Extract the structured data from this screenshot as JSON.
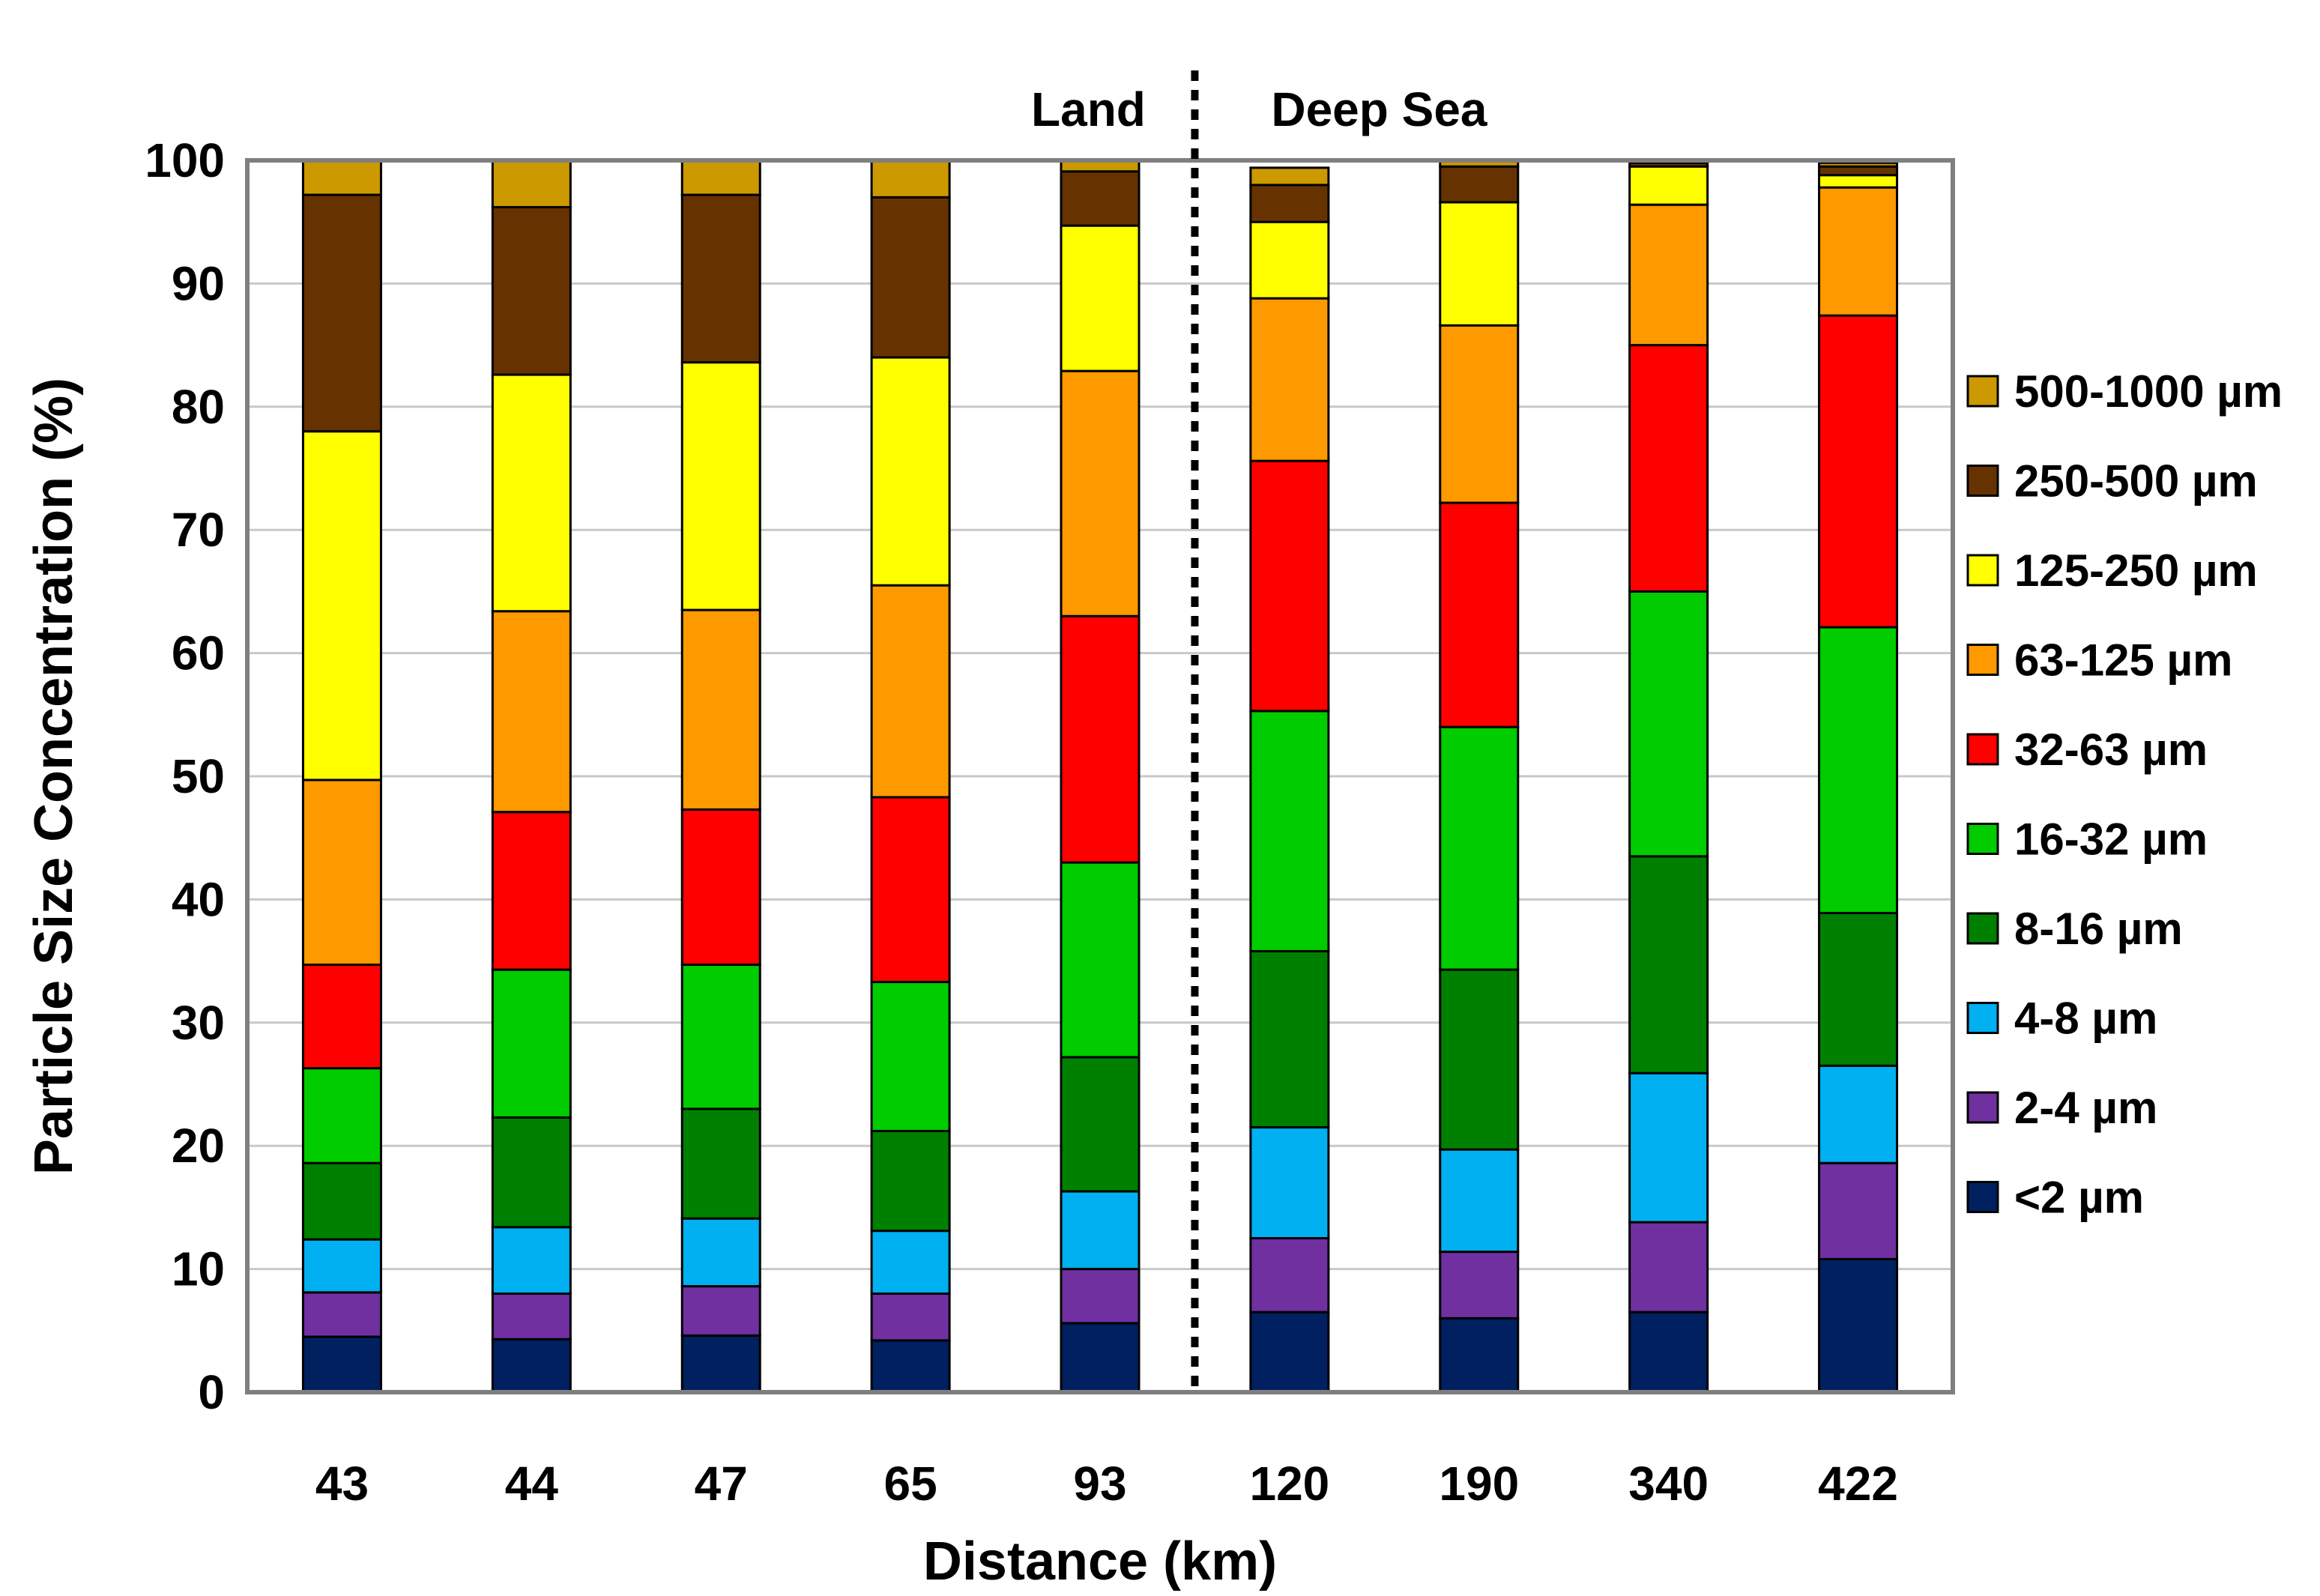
{
  "chart_data": {
    "type": "bar",
    "stacked": true,
    "title": "",
    "xlabel": "Distance (km)",
    "ylabel": "Particle Size Concentration (%)",
    "ylim": [
      0,
      100
    ],
    "yticks": [
      "0",
      "10",
      "20",
      "30",
      "40",
      "50",
      "60",
      "70",
      "80",
      "90",
      "100"
    ],
    "categories": [
      "43",
      "44",
      "47",
      "65",
      "93",
      "120",
      "190",
      "340",
      "422"
    ],
    "grid": true,
    "legend_position": "right",
    "annotations": {
      "divider_after_category": "93",
      "left_label": "Land",
      "right_label": "Deep Sea"
    },
    "series": [
      {
        "name": "<2 µm",
        "color": "#002060",
        "values": [
          4.5,
          4.3,
          4.6,
          4.2,
          5.6,
          6.5,
          6.0,
          6.5,
          10.8
        ]
      },
      {
        "name": "2-4 µm",
        "color": "#7030A0",
        "values": [
          3.6,
          3.7,
          4.0,
          3.8,
          4.4,
          6.0,
          5.4,
          7.3,
          7.8
        ]
      },
      {
        "name": "4-8 µm",
        "color": "#00B0F0",
        "values": [
          4.3,
          5.4,
          5.5,
          5.1,
          6.3,
          9.0,
          8.3,
          12.1,
          7.9
        ]
      },
      {
        "name": "8-16 µm",
        "color": "#008000",
        "values": [
          6.2,
          8.9,
          8.9,
          8.1,
          10.9,
          14.3,
          14.6,
          17.6,
          12.4
        ]
      },
      {
        "name": "16-32 µm",
        "color": "#00CC00",
        "values": [
          7.7,
          12.0,
          11.7,
          12.1,
          15.8,
          19.5,
          19.7,
          21.5,
          23.2
        ]
      },
      {
        "name": "32-63 µm",
        "color": "#FF0000",
        "values": [
          8.4,
          12.8,
          12.6,
          15.0,
          20.0,
          20.3,
          18.2,
          20.0,
          25.3
        ]
      },
      {
        "name": "63-125 µm",
        "color": "#FF9900",
        "values": [
          15.0,
          16.3,
          16.2,
          17.2,
          19.9,
          13.2,
          14.4,
          11.4,
          10.4
        ]
      },
      {
        "name": "125-250 µm",
        "color": "#FFFF00",
        "values": [
          28.3,
          19.2,
          20.1,
          18.5,
          11.8,
          6.2,
          10.0,
          3.1,
          1.0
        ]
      },
      {
        "name": "250-500 µm",
        "color": "#663300",
        "values": [
          19.2,
          13.6,
          13.6,
          13.0,
          4.4,
          3.0,
          2.9,
          0.3,
          0.7
        ]
      },
      {
        "name": "500-1000 µm",
        "color": "#CC9900",
        "values": [
          2.8,
          3.8,
          2.8,
          3.0,
          0.9,
          1.4,
          0.5,
          0.0,
          0.3
        ]
      }
    ]
  }
}
